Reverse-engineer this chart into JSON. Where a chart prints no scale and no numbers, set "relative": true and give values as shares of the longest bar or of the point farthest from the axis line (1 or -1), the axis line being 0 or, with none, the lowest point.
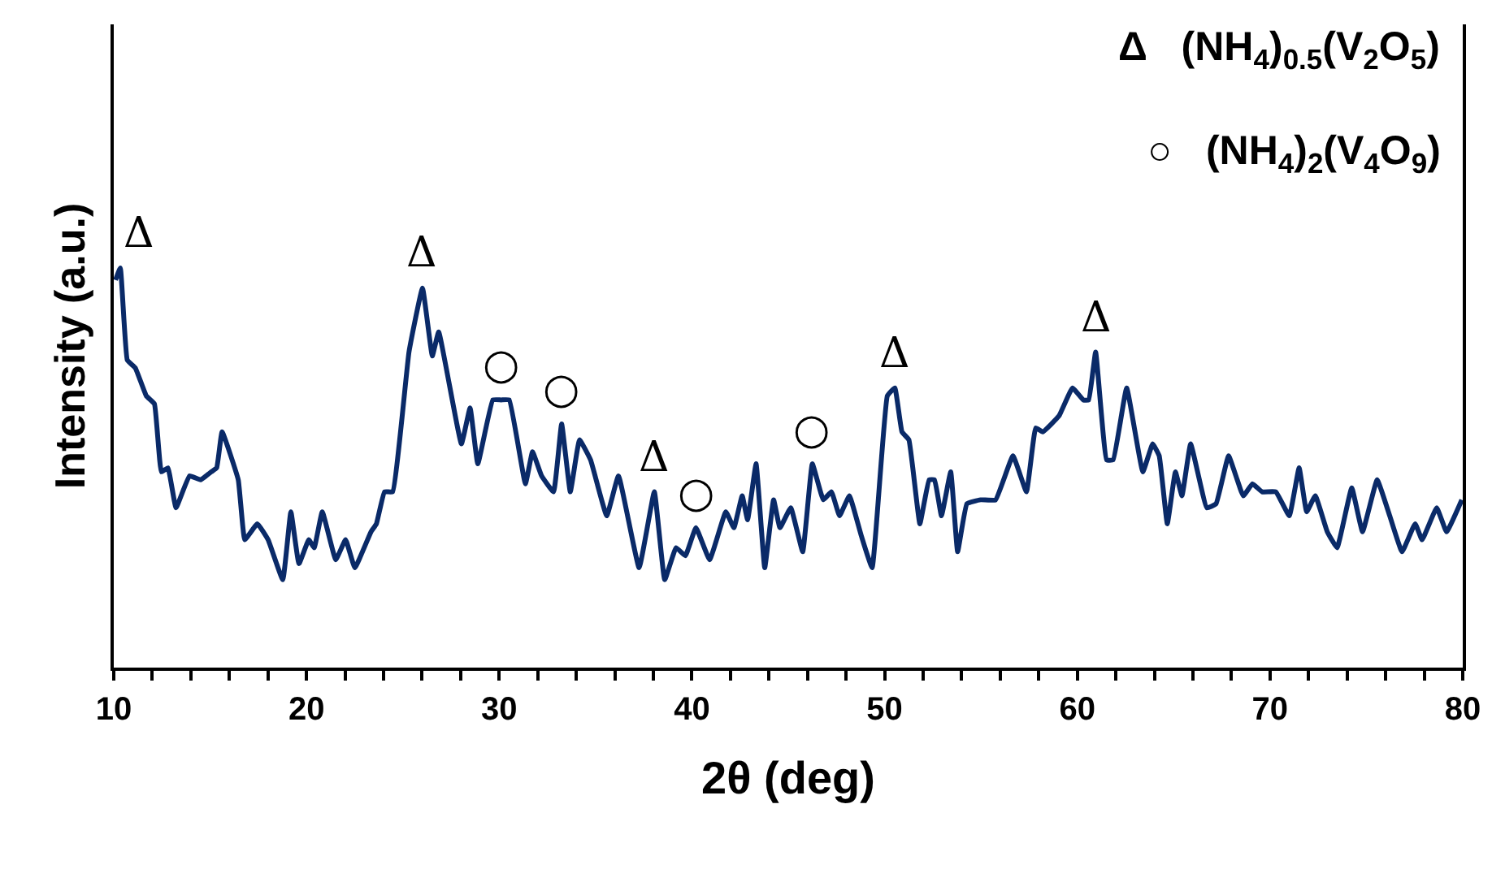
{
  "chart_data": {
    "type": "line",
    "relative": true,
    "xlabel": "2θ (deg)",
    "ylabel": "Intensity (a.u.)",
    "xlim": [
      10,
      80
    ],
    "xticks": [
      10,
      {
        "value": 12,
        "label": null
      },
      {
        "value": 14,
        "label": null
      },
      {
        "value": 16,
        "label": null
      },
      {
        "value": 18,
        "label": null
      },
      20,
      {
        "value": 22,
        "label": null
      },
      {
        "value": 24,
        "label": null
      },
      {
        "value": 26,
        "label": null
      },
      {
        "value": 28,
        "label": null
      },
      30,
      {
        "value": 32,
        "label": null
      },
      {
        "value": 34,
        "label": null
      },
      {
        "value": 36,
        "label": null
      },
      {
        "value": 38,
        "label": null
      },
      40,
      {
        "value": 42,
        "label": null
      },
      {
        "value": 44,
        "label": null
      },
      {
        "value": 46,
        "label": null
      },
      {
        "value": 48,
        "label": null
      },
      50,
      {
        "value": 52,
        "label": null
      },
      {
        "value": 54,
        "label": null
      },
      {
        "value": 56,
        "label": null
      },
      {
        "value": 58,
        "label": null
      },
      60,
      {
        "value": 62,
        "label": null
      },
      {
        "value": 64,
        "label": null
      },
      {
        "value": 66,
        "label": null
      },
      {
        "value": 68,
        "label": null
      },
      70,
      {
        "value": 72,
        "label": null
      },
      {
        "value": 74,
        "label": null
      },
      {
        "value": 76,
        "label": null
      },
      {
        "value": 78,
        "label": null
      },
      80
    ],
    "marker": "none",
    "line_style": "solid",
    "series": [
      {
        "color": "#0a2a68",
        "x": [
          10.09,
          10.34,
          10.7,
          11.12,
          11.69,
          12.11,
          12.47,
          12.81,
          13.23,
          13.93,
          14.5,
          15.06,
          15.34,
          15.62,
          16.46,
          16.8,
          17.45,
          18.01,
          18.77,
          19.19,
          19.61,
          20.12,
          20.4,
          20.82,
          21.52,
          22.03,
          22.51,
          23.35,
          23.63,
          24.05,
          24.47,
          25.32,
          26.02,
          26.53,
          26.86,
          28.04,
          28.49,
          28.89,
          29.67,
          30.1,
          30.52,
          31.36,
          31.73,
          32.2,
          32.82,
          33.24,
          33.69,
          34.17,
          34.74,
          35.58,
          36.19,
          37.26,
          38.05,
          38.59,
          39.18,
          39.66,
          40.21,
          40.92,
          41.76,
          42.18,
          42.61,
          42.89,
          43.33,
          43.78,
          44.24,
          44.57,
          45.13,
          45.75,
          46.25,
          46.82,
          47.24,
          47.66,
          48.17,
          48.79,
          49.35,
          50.14,
          50.53,
          50.9,
          51.26,
          51.83,
          52.31,
          52.59,
          52.95,
          53.43,
          53.79,
          54.27,
          54.98,
          55.76,
          56.66,
          57.36,
          57.84,
          58.2,
          59.05,
          59.75,
          60.31,
          60.59,
          60.95,
          61.52,
          61.86,
          62.56,
          63.4,
          63.91,
          64.25,
          64.67,
          65.09,
          65.43,
          65.88,
          66.72,
          67.2,
          67.85,
          68.61,
          69.09,
          69.59,
          70.3,
          71.0,
          71.51,
          71.9,
          72.35,
          72.97,
          73.48,
          74.24,
          74.8,
          75.56,
          76.21,
          76.85,
          77.53,
          77.89,
          78.65,
          79.16,
          79.95
        ],
        "values": [
          0.97,
          1.0,
          0.77,
          0.75,
          0.68,
          0.66,
          0.49,
          0.5,
          0.4,
          0.48,
          0.47,
          0.49,
          0.5,
          0.59,
          0.47,
          0.32,
          0.36,
          0.32,
          0.22,
          0.39,
          0.26,
          0.32,
          0.3,
          0.39,
          0.27,
          0.32,
          0.25,
          0.34,
          0.36,
          0.44,
          0.44,
          0.79,
          0.95,
          0.78,
          0.84,
          0.56,
          0.65,
          0.51,
          0.67,
          0.67,
          0.67,
          0.46,
          0.54,
          0.48,
          0.44,
          0.61,
          0.44,
          0.57,
          0.52,
          0.38,
          0.48,
          0.25,
          0.44,
          0.22,
          0.3,
          0.28,
          0.35,
          0.27,
          0.39,
          0.35,
          0.43,
          0.37,
          0.51,
          0.25,
          0.42,
          0.35,
          0.4,
          0.29,
          0.51,
          0.42,
          0.44,
          0.38,
          0.43,
          0.33,
          0.25,
          0.68,
          0.7,
          0.59,
          0.57,
          0.36,
          0.47,
          0.47,
          0.38,
          0.49,
          0.29,
          0.41,
          0.42,
          0.42,
          0.53,
          0.44,
          0.6,
          0.59,
          0.63,
          0.7,
          0.67,
          0.67,
          0.79,
          0.52,
          0.52,
          0.7,
          0.49,
          0.56,
          0.53,
          0.36,
          0.49,
          0.43,
          0.56,
          0.4,
          0.41,
          0.53,
          0.43,
          0.46,
          0.44,
          0.44,
          0.38,
          0.5,
          0.39,
          0.43,
          0.34,
          0.3,
          0.45,
          0.34,
          0.47,
          0.38,
          0.29,
          0.36,
          0.32,
          0.4,
          0.34,
          0.42
        ]
      }
    ],
    "annotations": [
      "Δ   (NH$_{4}$)$_{0.5}$(V$_{2}$O$_{5}$)",
      "○   (NH$_{4}$)$_{2}$(V$_{4}$O$_{9}$)",
      {
        "text": "Δ",
        "x": 10.34,
        "y": 1.0
      },
      {
        "text": "Δ",
        "x": 26.02,
        "y": 0.95
      },
      {
        "text": "○",
        "x": 30.1,
        "y": 0.67
      },
      {
        "text": "○",
        "x": 33.24,
        "y": 0.61
      },
      {
        "text": "Δ",
        "x": 38.05,
        "y": 0.44
      },
      {
        "text": "○",
        "x": 40.21,
        "y": 0.35
      },
      {
        "text": "○",
        "x": 46.25,
        "y": 0.51
      },
      {
        "text": "Δ",
        "x": 50.53,
        "y": 0.7
      },
      {
        "text": "Δ",
        "x": 60.95,
        "y": 0.79
      }
    ]
  }
}
